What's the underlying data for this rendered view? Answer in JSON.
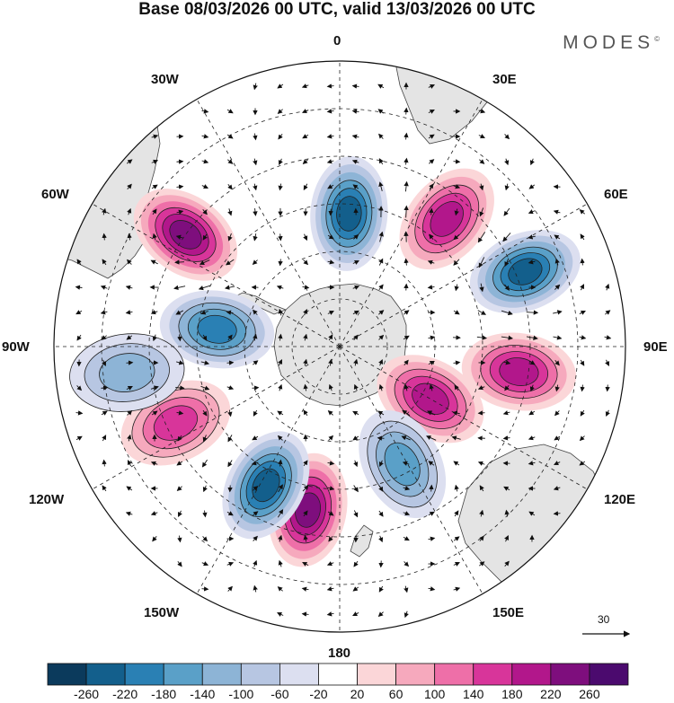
{
  "title": "Base 08/03/2026 00 UTC, valid 13/03/2026 00 UTC",
  "brand": "MODES",
  "brand_mark": "©",
  "longitude_labels": {
    "0": "0",
    "30E": "30E",
    "60E": "60E",
    "90E": "90E",
    "120E": "120E",
    "150E": "150E",
    "180": "180",
    "150W": "150W",
    "120W": "120W",
    "90W": "90W",
    "60W": "60W",
    "30W": "30W"
  },
  "colorbar": {
    "ticks": [
      "-260",
      "-220",
      "-180",
      "-140",
      "-100",
      "-60",
      "-20",
      "20",
      "60",
      "100",
      "140",
      "180",
      "220",
      "260"
    ],
    "colors": [
      "#0b3a5c",
      "#135f8c",
      "#2a80b4",
      "#5aa0c8",
      "#8db4d6",
      "#b7c6e2",
      "#dcdff0",
      "#ffffff",
      "#fbd6d8",
      "#f6a9bd",
      "#ee6fa8",
      "#d8359a",
      "#b2178b",
      "#7e0e7d",
      "#4b0a6e"
    ]
  },
  "vector_reference": {
    "value": "30"
  },
  "anomaly_centers": [
    {
      "lon_deg": 4,
      "colat_deg": 28,
      "value": -230
    },
    {
      "lon_deg": 68,
      "colat_deg": 42,
      "value": -250
    },
    {
      "lon_deg": 40,
      "colat_deg": 35,
      "value": 210
    },
    {
      "lon_deg": 98,
      "colat_deg": 38,
      "value": 180
    },
    {
      "lon_deg": 120,
      "colat_deg": 22,
      "value": 200
    },
    {
      "lon_deg": 152,
      "colat_deg": 28,
      "value": -170
    },
    {
      "lon_deg": 191,
      "colat_deg": 35,
      "value": 230
    },
    {
      "lon_deg": 208,
      "colat_deg": 33,
      "value": -240
    },
    {
      "lon_deg": 245,
      "colat_deg": 38,
      "value": 170
    },
    {
      "lon_deg": 278,
      "colat_deg": 26,
      "value": -200
    },
    {
      "lon_deg": 306,
      "colat_deg": 40,
      "value": 230
    },
    {
      "lon_deg": 263,
      "colat_deg": 45,
      "value": -100
    }
  ]
}
